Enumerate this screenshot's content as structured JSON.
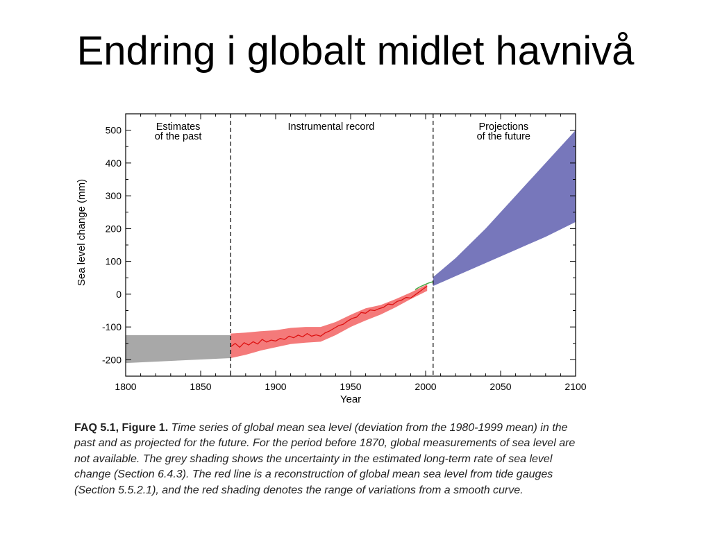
{
  "slide": {
    "title": "Endring i globalt midlet havnivå"
  },
  "chart_data": {
    "type": "line",
    "xlabel": "Year",
    "ylabel": "Sea level change (mm)",
    "xlim": [
      1800,
      2100
    ],
    "ylim": [
      -250,
      550
    ],
    "x_ticks": [
      1800,
      1850,
      1900,
      1950,
      2000,
      2050,
      2100
    ],
    "y_ticks": [
      -200,
      -100,
      0,
      100,
      200,
      300,
      400,
      500
    ],
    "grid": false,
    "dividers": [
      1870,
      2005
    ],
    "regions": [
      {
        "lines": [
          "Estimates",
          "of the past"
        ],
        "x_center": 1835
      },
      {
        "lines": [
          "Instrumental record"
        ],
        "x_center": 1937
      },
      {
        "lines": [
          "Projections",
          "of the future"
        ],
        "x_center": 2052
      }
    ],
    "colors": {
      "past_band": "#a8a8a8",
      "record_band": "#f47a7a",
      "record_line": "#dd1111",
      "satellite_line": "#44aa44",
      "projection_band": "#7777bb"
    },
    "past_band": {
      "x": [
        1800,
        1870
      ],
      "upper": [
        -125,
        -125
      ],
      "lower": [
        -210,
        -195
      ]
    },
    "record_band": {
      "x": [
        1870,
        1880,
        1890,
        1900,
        1910,
        1920,
        1930,
        1940,
        1950,
        1960,
        1970,
        1980,
        1990,
        2001
      ],
      "upper": [
        -120,
        -117,
        -113,
        -110,
        -103,
        -100,
        -100,
        -85,
        -63,
        -43,
        -33,
        -15,
        5,
        30
      ],
      "lower": [
        -195,
        -185,
        -172,
        -162,
        -152,
        -148,
        -145,
        -125,
        -100,
        -80,
        -62,
        -40,
        -15,
        10
      ]
    },
    "record_line": {
      "x": [
        1870,
        1873,
        1876,
        1879,
        1882,
        1885,
        1888,
        1891,
        1894,
        1897,
        1900,
        1903,
        1906,
        1909,
        1912,
        1915,
        1918,
        1921,
        1924,
        1927,
        1930,
        1933,
        1936,
        1939,
        1942,
        1945,
        1948,
        1951,
        1954,
        1957,
        1960,
        1963,
        1966,
        1969,
        1972,
        1975,
        1978,
        1981,
        1984,
        1987,
        1990,
        1993,
        1996,
        1999,
        2001
      ],
      "y": [
        -160,
        -150,
        -162,
        -148,
        -155,
        -145,
        -152,
        -138,
        -146,
        -140,
        -143,
        -135,
        -138,
        -128,
        -133,
        -125,
        -130,
        -120,
        -128,
        -124,
        -128,
        -118,
        -112,
        -104,
        -96,
        -92,
        -82,
        -74,
        -70,
        -56,
        -58,
        -48,
        -50,
        -44,
        -40,
        -30,
        -32,
        -22,
        -18,
        -10,
        -12,
        -2,
        8,
        18,
        24
      ]
    },
    "satellite_line": {
      "x": [
        1993,
        1996,
        1999,
        2002,
        2005
      ],
      "y": [
        14,
        22,
        28,
        34,
        38
      ]
    },
    "projection_band": {
      "x": [
        2005,
        2020,
        2040,
        2060,
        2080,
        2100
      ],
      "upper": [
        52,
        110,
        200,
        300,
        400,
        500
      ],
      "lower": [
        25,
        55,
        95,
        135,
        175,
        220
      ]
    }
  },
  "caption": {
    "lead": "FAQ 5.1, Figure 1.",
    "body": "Time series of global mean sea level (deviation from the 1980-1999 mean) in the past and as projected for the future. For the period before 1870, global measurements of sea level are not available. The grey shading shows the uncertainty in the estimated long-term rate of sea level change (Section 6.4.3). The red line is a reconstruction of global mean sea level from tide gauges (Section 5.5.2.1), and the red shading denotes the range of variations from a smooth curve."
  }
}
